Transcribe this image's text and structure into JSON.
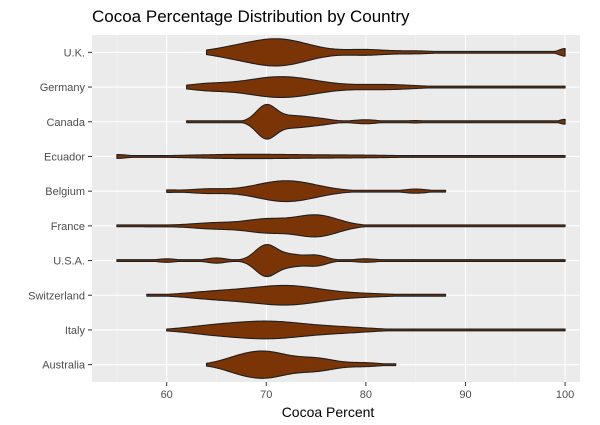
{
  "chart_data": {
    "type": "violin",
    "title": "Cocoa Percentage Distribution by Country",
    "xlabel": "Cocoa Percent",
    "ylabel": "",
    "xlim": [
      52.5,
      101.5
    ],
    "x_ticks": [
      60,
      70,
      80,
      90,
      100
    ],
    "x_minor_ticks": [
      55,
      65,
      75,
      85,
      95
    ],
    "grid": true,
    "legend": "none",
    "categories": [
      "U.K.",
      "Germany",
      "Canada",
      "Ecuador",
      "Belgium",
      "France",
      "U.S.A.",
      "Switzerland",
      "Italy",
      "Australia"
    ],
    "series": [
      {
        "category": "U.K.",
        "min": 64,
        "max": 100,
        "peaks": [
          [
            71,
            0.78,
            3.2
          ],
          [
            66,
            0.1,
            2.0
          ],
          [
            80,
            0.15,
            2.0
          ],
          [
            85,
            0.08,
            2.0
          ],
          [
            100,
            0.22,
            0.6
          ]
        ]
      },
      {
        "category": "Germany",
        "min": 62,
        "max": 100,
        "peaks": [
          [
            71.5,
            0.6,
            3.6
          ],
          [
            64,
            0.15,
            2.0
          ],
          [
            82,
            0.14,
            3.0
          ]
        ]
      },
      {
        "category": "Canada",
        "min": 62,
        "max": 100,
        "peaks": [
          [
            70,
            1.0,
            1.0
          ],
          [
            72.5,
            0.3,
            1.3
          ],
          [
            75,
            0.2,
            1.5
          ],
          [
            80,
            0.12,
            1.2
          ],
          [
            85,
            0.07,
            1.2
          ],
          [
            100,
            0.15,
            0.5
          ]
        ]
      },
      {
        "category": "Ecuador",
        "min": 55,
        "max": 100,
        "peaks": [
          [
            55,
            0.1,
            1.0
          ],
          [
            68,
            0.12,
            6.0
          ],
          [
            80,
            0.06,
            5.0
          ]
        ]
      },
      {
        "category": "Belgium",
        "min": 60,
        "max": 88,
        "peaks": [
          [
            72,
            0.6,
            3.0
          ],
          [
            64,
            0.12,
            1.8
          ],
          [
            85,
            0.12,
            1.2
          ],
          [
            60,
            0.06,
            1.0
          ]
        ]
      },
      {
        "category": "France",
        "min": 55,
        "max": 100,
        "peaks": [
          [
            75,
            0.62,
            2.2
          ],
          [
            70,
            0.35,
            2.0
          ],
          [
            65,
            0.18,
            2.5
          ],
          [
            58,
            0.05,
            2.0
          ]
        ]
      },
      {
        "category": "U.S.A.",
        "min": 55,
        "max": 100,
        "peaks": [
          [
            70,
            0.9,
            1.1
          ],
          [
            72.5,
            0.3,
            1.1
          ],
          [
            75,
            0.3,
            1.1
          ],
          [
            65,
            0.15,
            1.0
          ],
          [
            60,
            0.1,
            1.0
          ],
          [
            80,
            0.1,
            1.2
          ]
        ]
      },
      {
        "category": "Switzerland",
        "min": 58,
        "max": 88,
        "peaks": [
          [
            72,
            0.55,
            3.5
          ],
          [
            65,
            0.2,
            3.0
          ],
          [
            80,
            0.08,
            3.0
          ]
        ]
      },
      {
        "category": "Italy",
        "min": 60,
        "max": 100,
        "peaks": [
          [
            70,
            0.5,
            4.0
          ],
          [
            64,
            0.12,
            2.5
          ],
          [
            78,
            0.12,
            3.0
          ],
          [
            98,
            0.04,
            2.0
          ]
        ]
      },
      {
        "category": "Australia",
        "min": 64,
        "max": 83,
        "peaks": [
          [
            70,
            0.7,
            2.2
          ],
          [
            67,
            0.25,
            1.8
          ],
          [
            75,
            0.35,
            2.0
          ],
          [
            80,
            0.1,
            1.5
          ]
        ]
      }
    ],
    "colors": {
      "fill": "#7a3406",
      "stroke": "#1f1f1f",
      "panel": "#ebebeb",
      "grid_major": "#ffffff",
      "grid_minor": "#f4f4f4",
      "tick": "#333333",
      "tick_label": "#4d4d4d"
    }
  }
}
